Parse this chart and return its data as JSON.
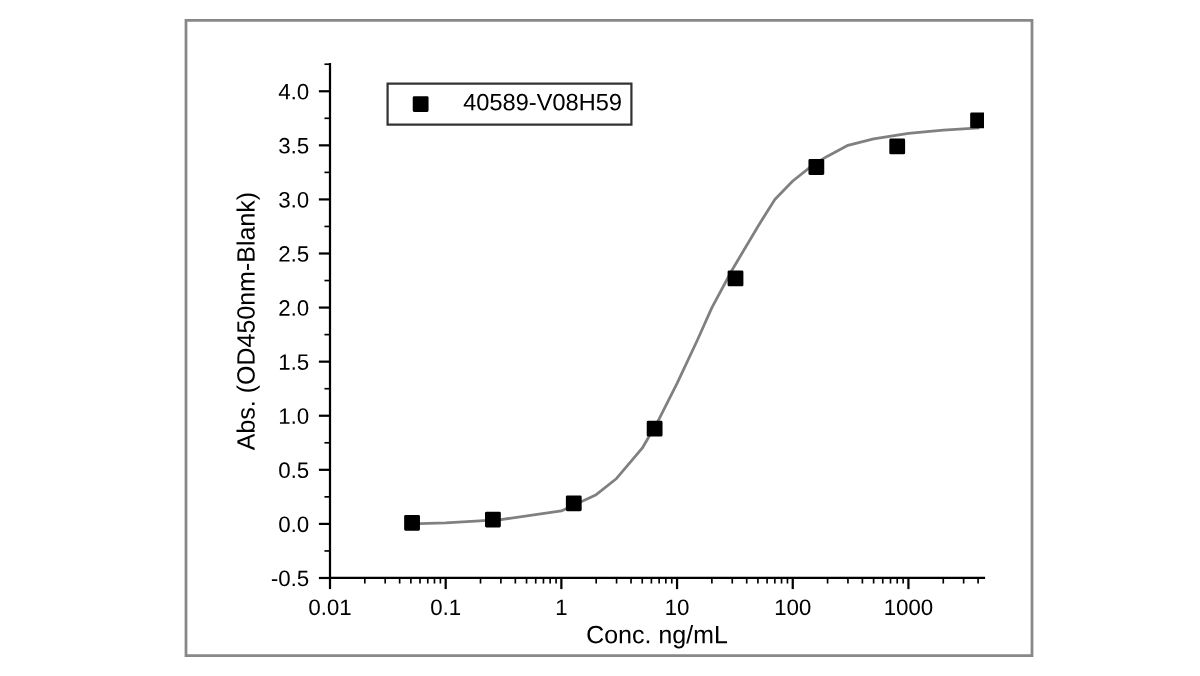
{
  "chart_data": {
    "type": "scatter",
    "xlabel": "Conc. ng/mL",
    "ylabel": "Abs. (OD450nm-Blank)",
    "log": "x",
    "series": [
      {
        "name": "40589-V08H59",
        "color": "#000000",
        "marker": "square",
        "x": [
          0.0512,
          0.256,
          1.28,
          6.4,
          32,
          160,
          800,
          4000
        ],
        "values": [
          0.01,
          0.04,
          0.19,
          0.88,
          2.27,
          3.3,
          3.49,
          3.73
        ]
      },
      {
        "type": "line",
        "color": "#808080",
        "marker": "none",
        "line_style": "solid",
        "x": [
          0.05,
          0.1,
          0.3,
          1,
          2,
          3,
          5,
          7,
          10,
          15,
          20,
          30,
          50,
          70,
          100,
          150,
          200,
          300,
          500,
          1000,
          2000,
          4000
        ],
        "values": [
          0.0,
          0.01,
          0.04,
          0.12,
          0.27,
          0.42,
          0.7,
          0.97,
          1.3,
          1.7,
          2.0,
          2.35,
          2.75,
          3.0,
          3.17,
          3.32,
          3.4,
          3.5,
          3.56,
          3.61,
          3.64,
          3.66
        ]
      }
    ],
    "xlim": [
      0.01,
      4500
    ],
    "xticks": [
      {
        "value": 0.01,
        "label": "0.01"
      },
      {
        "value": 0.1,
        "label": "0.1"
      },
      1,
      10,
      100,
      1000
    ],
    "ylim": [
      -0.5,
      4.25
    ],
    "yticks": [
      {
        "value": -0.5,
        "label": "-0.5"
      },
      {
        "value": 0,
        "label": "0.0"
      },
      {
        "value": 0.5,
        "label": "0.5"
      },
      {
        "value": 1,
        "label": "1.0"
      },
      {
        "value": 1.5,
        "label": "1.5"
      },
      {
        "value": 2,
        "label": "2.0"
      },
      {
        "value": 2.5,
        "label": "2.5"
      },
      {
        "value": 3,
        "label": "3.0"
      },
      {
        "value": 3.5,
        "label": "3.5"
      },
      {
        "value": 4,
        "label": "4.0"
      }
    ],
    "grid": false,
    "legend": "top left"
  }
}
